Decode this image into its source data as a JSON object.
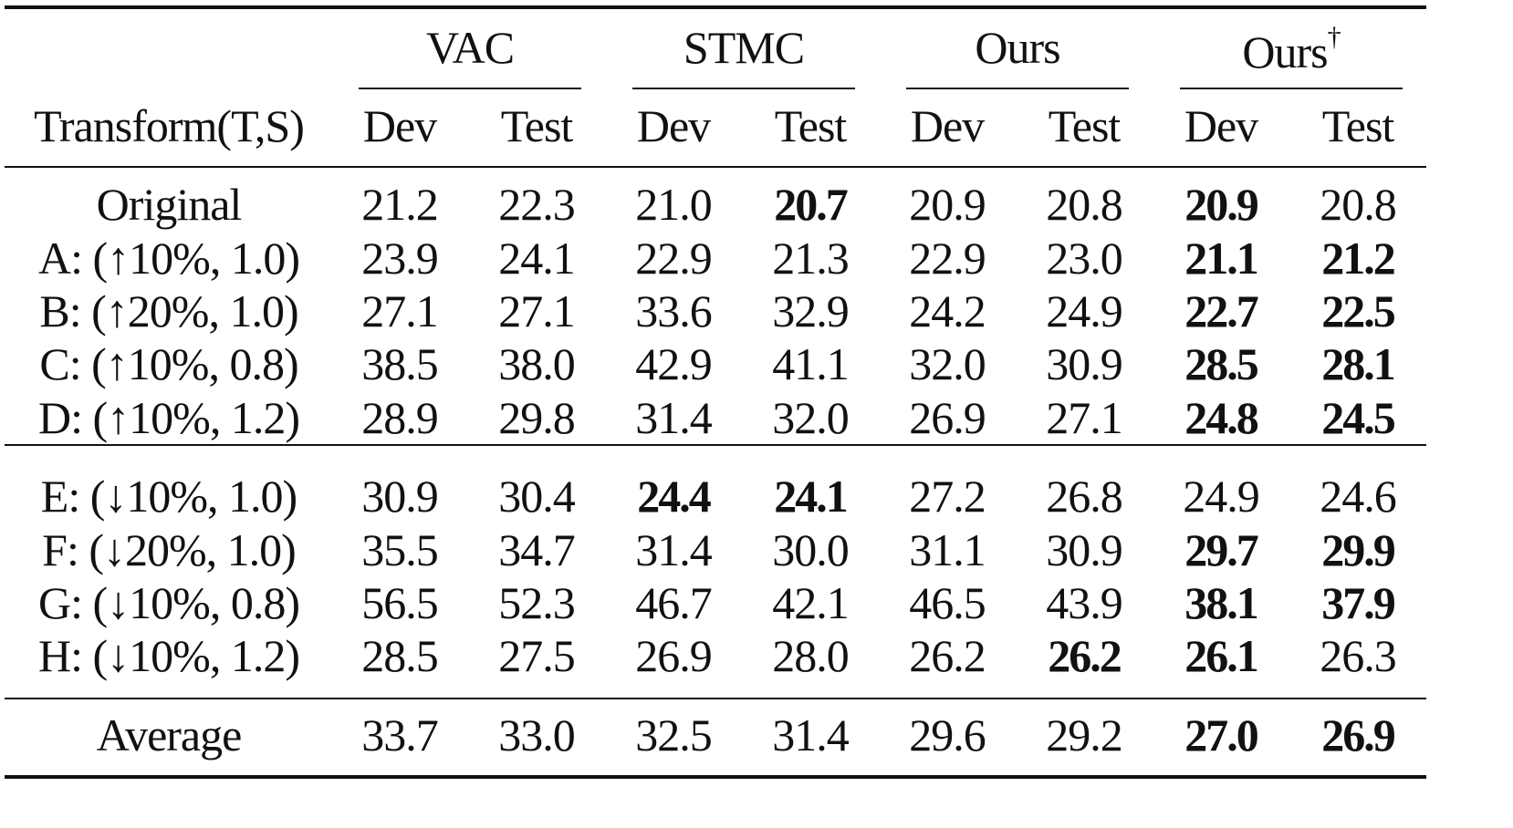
{
  "table": {
    "groups": [
      {
        "name": "VAC",
        "dagger": ""
      },
      {
        "name": "STMC",
        "dagger": ""
      },
      {
        "name": "Ours",
        "dagger": ""
      },
      {
        "name": "Ours",
        "dagger": "†"
      }
    ],
    "subheader": {
      "first": "Transform(T,S)",
      "cols": [
        "Dev",
        "Test",
        "Dev",
        "Test",
        "Dev",
        "Test",
        "Dev",
        "Test"
      ]
    },
    "sections": [
      {
        "rows": [
          {
            "label": "Original",
            "values": [
              "21.2",
              "22.3",
              "21.0",
              "20.7",
              "20.9",
              "20.8",
              "20.9",
              "20.8"
            ],
            "bold": [
              false,
              false,
              false,
              true,
              false,
              false,
              true,
              false
            ]
          },
          {
            "label": "A: (↑10%, 1.0)",
            "values": [
              "23.9",
              "24.1",
              "22.9",
              "21.3",
              "22.9",
              "23.0",
              "21.1",
              "21.2"
            ],
            "bold": [
              false,
              false,
              false,
              false,
              false,
              false,
              true,
              true
            ]
          },
          {
            "label": "B: (↑20%, 1.0)",
            "values": [
              "27.1",
              "27.1",
              "33.6",
              "32.9",
              "24.2",
              "24.9",
              "22.7",
              "22.5"
            ],
            "bold": [
              false,
              false,
              false,
              false,
              false,
              false,
              true,
              true
            ]
          },
          {
            "label": "C: (↑10%, 0.8)",
            "values": [
              "38.5",
              "38.0",
              "42.9",
              "41.1",
              "32.0",
              "30.9",
              "28.5",
              "28.1"
            ],
            "bold": [
              false,
              false,
              false,
              false,
              false,
              false,
              true,
              true
            ]
          },
          {
            "label": "D: (↑10%, 1.2)",
            "values": [
              "28.9",
              "29.8",
              "31.4",
              "32.0",
              "26.9",
              "27.1",
              "24.8",
              "24.5"
            ],
            "bold": [
              false,
              false,
              false,
              false,
              false,
              false,
              true,
              true
            ]
          }
        ]
      },
      {
        "rows": [
          {
            "label": "E: (↓10%, 1.0)",
            "values": [
              "30.9",
              "30.4",
              "24.4",
              "24.1",
              "27.2",
              "26.8",
              "24.9",
              "24.6"
            ],
            "bold": [
              false,
              false,
              true,
              true,
              false,
              false,
              false,
              false
            ]
          },
          {
            "label": "F: (↓20%, 1.0)",
            "values": [
              "35.5",
              "34.7",
              "31.4",
              "30.0",
              "31.1",
              "30.9",
              "29.7",
              "29.9"
            ],
            "bold": [
              false,
              false,
              false,
              false,
              false,
              false,
              true,
              true
            ]
          },
          {
            "label": "G: (↓10%, 0.8)",
            "values": [
              "56.5",
              "52.3",
              "46.7",
              "42.1",
              "46.5",
              "43.9",
              "38.1",
              "37.9"
            ],
            "bold": [
              false,
              false,
              false,
              false,
              false,
              false,
              true,
              true
            ]
          },
          {
            "label": "H: (↓10%, 1.2)",
            "values": [
              "28.5",
              "27.5",
              "26.9",
              "28.0",
              "26.2",
              "26.2",
              "26.1",
              "26.3"
            ],
            "bold": [
              false,
              false,
              false,
              false,
              false,
              true,
              true,
              false
            ]
          }
        ]
      },
      {
        "rows": [
          {
            "label": "Average",
            "values": [
              "33.7",
              "33.0",
              "32.5",
              "31.4",
              "29.6",
              "29.2",
              "27.0",
              "26.9"
            ],
            "bold": [
              false,
              false,
              false,
              false,
              false,
              false,
              true,
              true
            ]
          }
        ]
      }
    ]
  }
}
